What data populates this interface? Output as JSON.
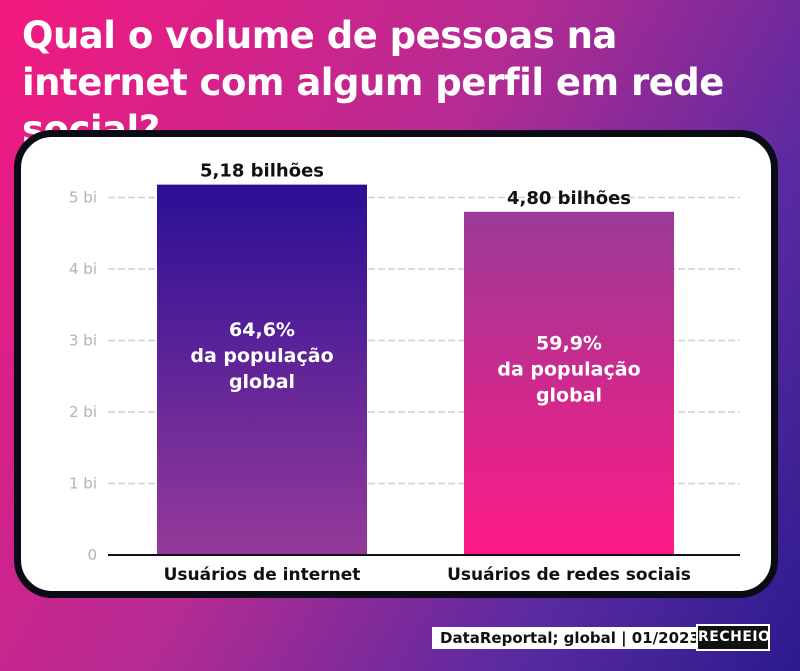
{
  "headline": "Qual o volume de pessoas na internet com algum perfil em rede social?",
  "source": "DataReportal; global | 01/2023",
  "brand": "RECHEIO",
  "colors": {
    "bar1_top": "#2a0f96",
    "bar1_bottom": "#963a9a",
    "bar2_top": "#9a3a96",
    "bar2_bottom": "#ff1a86"
  },
  "chart_data": {
    "type": "bar",
    "categories": [
      "Usuários de internet",
      "Usuários de redes sociais"
    ],
    "values": [
      5.18,
      4.8
    ],
    "value_labels": [
      "5,18 bilhões",
      "4,80 bilhões"
    ],
    "inner_labels": [
      [
        "64,6%",
        "da população",
        "global"
      ],
      [
        "59,9%",
        "da população",
        "global"
      ]
    ],
    "yticks": [
      0,
      1,
      2,
      3,
      4,
      5
    ],
    "ytick_labels": [
      "0",
      "1 bi",
      "2 bi",
      "3 bi",
      "4 bi",
      "5 bi"
    ],
    "ylim": [
      0,
      5.18
    ],
    "grid": true
  }
}
